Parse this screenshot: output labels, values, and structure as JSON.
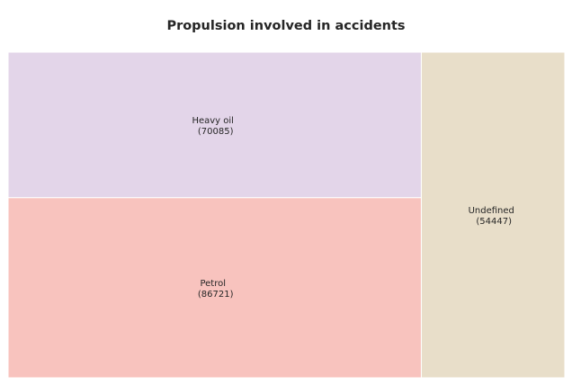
{
  "chart_data": {
    "type": "treemap",
    "title": "Propulsion involved in accidents",
    "tiles": [
      {
        "name": "Petrol",
        "value": 86721,
        "value_label": "(86721)",
        "color": "#f8c3be"
      },
      {
        "name": "Heavy oil",
        "value": 70085,
        "value_label": "(70085)",
        "color": "#e3d5e9"
      },
      {
        "name": "Undefined",
        "value": 54447,
        "value_label": "(54447)",
        "color": "#e8dec9"
      }
    ]
  }
}
